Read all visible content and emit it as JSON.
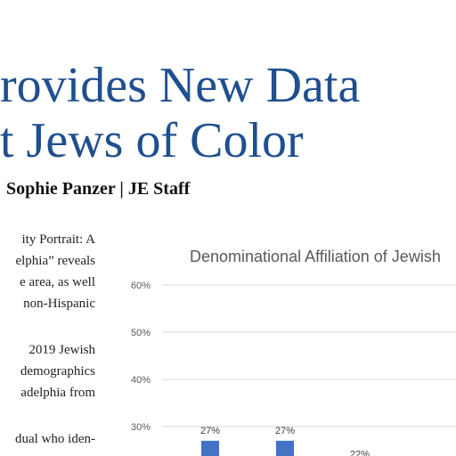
{
  "article": {
    "headline_lines": [
      "rovides New Data",
      "t Jews of Color"
    ],
    "byline": "Sophie Panzer | JE Staff",
    "body_lines": [
      "ity Portrait: A",
      "elphia” reveals",
      "e area, as well",
      "non-Hispanic",
      "",
      "2019 Jewish",
      "demographics",
      "adelphia from",
      "",
      "dual who iden-"
    ]
  },
  "chart_data": {
    "type": "bar",
    "title": "Denominational Affiliation of Jewish",
    "ylim": [
      0,
      60
    ],
    "yticks": [
      "60%",
      "50%",
      "40%",
      "30%"
    ],
    "grid": true,
    "categories": [
      "",
      "",
      ""
    ],
    "values": [
      27,
      27,
      22
    ],
    "data_labels": [
      "27%",
      "27%",
      "22%"
    ],
    "bar_color": "#4472c4"
  }
}
